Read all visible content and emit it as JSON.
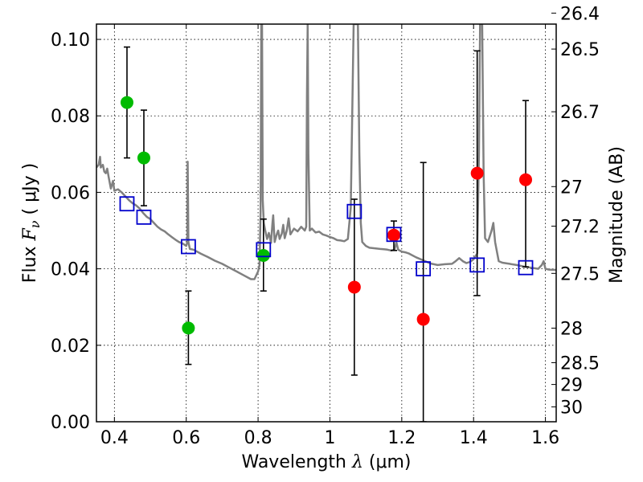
{
  "chart_data": {
    "type": "scatter",
    "xlabel": {
      "pre": "Wavelength  ",
      "sym": "λ",
      "post": " (μm)"
    },
    "ylabel": {
      "pre": "Flux  ",
      "sym": "F",
      "sub": "ν",
      "post": "  ( μJy )"
    },
    "y2label": "Magnitude (AB)",
    "xlim": [
      0.35,
      1.63
    ],
    "ylim": [
      0.0,
      0.104
    ],
    "grid": true,
    "x_ticks": [
      {
        "v": 0.4,
        "label": "0.4"
      },
      {
        "v": 0.6,
        "label": "0.6"
      },
      {
        "v": 0.8,
        "label": "0.8"
      },
      {
        "v": 1.0,
        "label": "1"
      },
      {
        "v": 1.2,
        "label": "1.2"
      },
      {
        "v": 1.4,
        "label": "1.4"
      },
      {
        "v": 1.6,
        "label": "1.6"
      }
    ],
    "y_ticks": [
      {
        "v": 0.0,
        "label": "0.00"
      },
      {
        "v": 0.02,
        "label": "0.02"
      },
      {
        "v": 0.04,
        "label": "0.04"
      },
      {
        "v": 0.06,
        "label": "0.06"
      },
      {
        "v": 0.08,
        "label": "0.08"
      },
      {
        "v": 0.1,
        "label": "0.10"
      }
    ],
    "mag_ticks": [
      {
        "v": 26.4,
        "label": "26.4"
      },
      {
        "v": 26.5,
        "label": "26.5"
      },
      {
        "v": 26.7,
        "label": "26.7"
      },
      {
        "v": 27.0,
        "label": "27"
      },
      {
        "v": 27.2,
        "label": "27.2"
      },
      {
        "v": 27.5,
        "label": "27.5"
      },
      {
        "v": 28.0,
        "label": "28"
      },
      {
        "v": 28.5,
        "label": "28.5"
      },
      {
        "v": 29.0,
        "label": "29"
      },
      {
        "v": 30.0,
        "label": "30"
      }
    ],
    "model_spectrum": {
      "name": "model SED",
      "color": "#808080",
      "points": [
        [
          0.35,
          0.0665
        ],
        [
          0.356,
          0.0672
        ],
        [
          0.36,
          0.0693
        ],
        [
          0.362,
          0.0665
        ],
        [
          0.368,
          0.0672
        ],
        [
          0.372,
          0.0654
        ],
        [
          0.376,
          0.065
        ],
        [
          0.38,
          0.0662
        ],
        [
          0.384,
          0.064
        ],
        [
          0.39,
          0.061
        ],
        [
          0.396,
          0.063
        ],
        [
          0.4,
          0.0604
        ],
        [
          0.41,
          0.0608
        ],
        [
          0.42,
          0.06
        ],
        [
          0.43,
          0.059
        ],
        [
          0.44,
          0.058
        ],
        [
          0.45,
          0.0572
        ],
        [
          0.46,
          0.0566
        ],
        [
          0.47,
          0.0558
        ],
        [
          0.48,
          0.0546
        ],
        [
          0.49,
          0.0536
        ],
        [
          0.5,
          0.053
        ],
        [
          0.51,
          0.052
        ],
        [
          0.52,
          0.051
        ],
        [
          0.53,
          0.0503
        ],
        [
          0.54,
          0.0498
        ],
        [
          0.55,
          0.049
        ],
        [
          0.56,
          0.0483
        ],
        [
          0.57,
          0.0476
        ],
        [
          0.58,
          0.047
        ],
        [
          0.59,
          0.0466
        ],
        [
          0.6,
          0.046
        ],
        [
          0.603,
          0.047
        ],
        [
          0.604,
          0.068
        ],
        [
          0.606,
          0.047
        ],
        [
          0.61,
          0.0452
        ],
        [
          0.62,
          0.045
        ],
        [
          0.64,
          0.044
        ],
        [
          0.66,
          0.0431
        ],
        [
          0.68,
          0.0421
        ],
        [
          0.7,
          0.0413
        ],
        [
          0.72,
          0.0403
        ],
        [
          0.74,
          0.0393
        ],
        [
          0.76,
          0.0383
        ],
        [
          0.78,
          0.0373
        ],
        [
          0.79,
          0.0373
        ],
        [
          0.8,
          0.0393
        ],
        [
          0.804,
          0.041
        ],
        [
          0.807,
          0.055
        ],
        [
          0.809,
          0.104
        ],
        [
          0.811,
          0.104
        ],
        [
          0.813,
          0.058
        ],
        [
          0.816,
          0.052
        ],
        [
          0.82,
          0.05
        ],
        [
          0.825,
          0.0478
        ],
        [
          0.83,
          0.0494
        ],
        [
          0.836,
          0.0468
        ],
        [
          0.84,
          0.052
        ],
        [
          0.842,
          0.054
        ],
        [
          0.846,
          0.047
        ],
        [
          0.852,
          0.049
        ],
        [
          0.856,
          0.05
        ],
        [
          0.86,
          0.0478
        ],
        [
          0.866,
          0.0492
        ],
        [
          0.87,
          0.0515
        ],
        [
          0.874,
          0.048
        ],
        [
          0.88,
          0.05
        ],
        [
          0.885,
          0.0532
        ],
        [
          0.89,
          0.049
        ],
        [
          0.9,
          0.0505
        ],
        [
          0.91,
          0.0498
        ],
        [
          0.92,
          0.051
        ],
        [
          0.93,
          0.05
        ],
        [
          0.934,
          0.051
        ],
        [
          0.936,
          0.085
        ],
        [
          0.938,
          0.104
        ],
        [
          0.94,
          0.07
        ],
        [
          0.944,
          0.05
        ],
        [
          0.95,
          0.0505
        ],
        [
          0.96,
          0.0495
        ],
        [
          0.97,
          0.0497
        ],
        [
          0.98,
          0.049
        ],
        [
          0.99,
          0.0487
        ],
        [
          1.0,
          0.0483
        ],
        [
          1.01,
          0.048
        ],
        [
          1.02,
          0.0475
        ],
        [
          1.03,
          0.0474
        ],
        [
          1.04,
          0.0472
        ],
        [
          1.05,
          0.0478
        ],
        [
          1.058,
          0.056
        ],
        [
          1.062,
          0.08
        ],
        [
          1.066,
          0.104
        ],
        [
          1.078,
          0.104
        ],
        [
          1.082,
          0.07
        ],
        [
          1.086,
          0.052
        ],
        [
          1.09,
          0.047
        ],
        [
          1.1,
          0.046
        ],
        [
          1.11,
          0.0455
        ],
        [
          1.12,
          0.0454
        ],
        [
          1.13,
          0.0453
        ],
        [
          1.14,
          0.0452
        ],
        [
          1.15,
          0.0451
        ],
        [
          1.16,
          0.045
        ],
        [
          1.17,
          0.0448
        ],
        [
          1.18,
          0.045
        ],
        [
          1.185,
          0.047
        ],
        [
          1.19,
          0.045
        ],
        [
          1.2,
          0.0445
        ],
        [
          1.21,
          0.0443
        ],
        [
          1.22,
          0.044
        ],
        [
          1.24,
          0.043
        ],
        [
          1.26,
          0.0422
        ],
        [
          1.28,
          0.0414
        ],
        [
          1.3,
          0.041
        ],
        [
          1.32,
          0.0412
        ],
        [
          1.34,
          0.0413
        ],
        [
          1.35,
          0.042
        ],
        [
          1.36,
          0.0428
        ],
        [
          1.37,
          0.042
        ],
        [
          1.38,
          0.0415
        ],
        [
          1.39,
          0.0418
        ],
        [
          1.4,
          0.0425
        ],
        [
          1.41,
          0.044
        ],
        [
          1.415,
          0.07
        ],
        [
          1.418,
          0.104
        ],
        [
          1.424,
          0.104
        ],
        [
          1.428,
          0.065
        ],
        [
          1.432,
          0.048
        ],
        [
          1.44,
          0.047
        ],
        [
          1.45,
          0.05
        ],
        [
          1.455,
          0.052
        ],
        [
          1.46,
          0.047
        ],
        [
          1.47,
          0.042
        ],
        [
          1.48,
          0.0416
        ],
        [
          1.5,
          0.0413
        ],
        [
          1.52,
          0.041
        ],
        [
          1.54,
          0.0406
        ],
        [
          1.56,
          0.0403
        ],
        [
          1.58,
          0.04
        ],
        [
          1.59,
          0.041
        ],
        [
          1.595,
          0.042
        ],
        [
          1.6,
          0.04
        ],
        [
          1.61,
          0.0398
        ],
        [
          1.63,
          0.0397
        ]
      ]
    },
    "series": [
      {
        "name": "green detections",
        "color": "#00bb00",
        "points": [
          {
            "x": 0.435,
            "y": 0.0835
          },
          {
            "x": 0.482,
            "y": 0.069
          },
          {
            "x": 0.606,
            "y": 0.0245
          },
          {
            "x": 0.815,
            "y": 0.0435
          }
        ]
      },
      {
        "name": "red detections",
        "color": "#ff0000",
        "points": [
          {
            "x": 1.068,
            "y": 0.0352
          },
          {
            "x": 1.178,
            "y": 0.0488
          },
          {
            "x": 1.26,
            "y": 0.0268
          },
          {
            "x": 1.41,
            "y": 0.065
          },
          {
            "x": 1.545,
            "y": 0.0633
          }
        ]
      },
      {
        "name": "model bandpass fluxes",
        "color": "#0000cc",
        "points": [
          {
            "x": 0.435,
            "y": 0.057
          },
          {
            "x": 0.482,
            "y": 0.0535
          },
          {
            "x": 0.606,
            "y": 0.0458
          },
          {
            "x": 0.815,
            "y": 0.045
          },
          {
            "x": 1.068,
            "y": 0.055
          },
          {
            "x": 1.178,
            "y": 0.049
          },
          {
            "x": 1.26,
            "y": 0.04
          },
          {
            "x": 1.41,
            "y": 0.041
          },
          {
            "x": 1.545,
            "y": 0.0403
          }
        ]
      }
    ],
    "error_bars": [
      {
        "x": 0.435,
        "lo": 0.069,
        "hi": 0.098
      },
      {
        "x": 0.482,
        "lo": 0.0565,
        "hi": 0.0815
      },
      {
        "x": 0.606,
        "lo": 0.015,
        "hi": 0.0342
      },
      {
        "x": 0.815,
        "lo": 0.0342,
        "hi": 0.053
      },
      {
        "x": 1.068,
        "lo": 0.0122,
        "hi": 0.0582
      },
      {
        "x": 1.178,
        "lo": 0.0448,
        "hi": 0.0525
      },
      {
        "x": 1.26,
        "lo": 0.0,
        "hi": 0.0678
      },
      {
        "x": 1.41,
        "lo": 0.033,
        "hi": 0.097
      },
      {
        "x": 1.545,
        "lo": 0.0405,
        "hi": 0.084
      }
    ]
  }
}
